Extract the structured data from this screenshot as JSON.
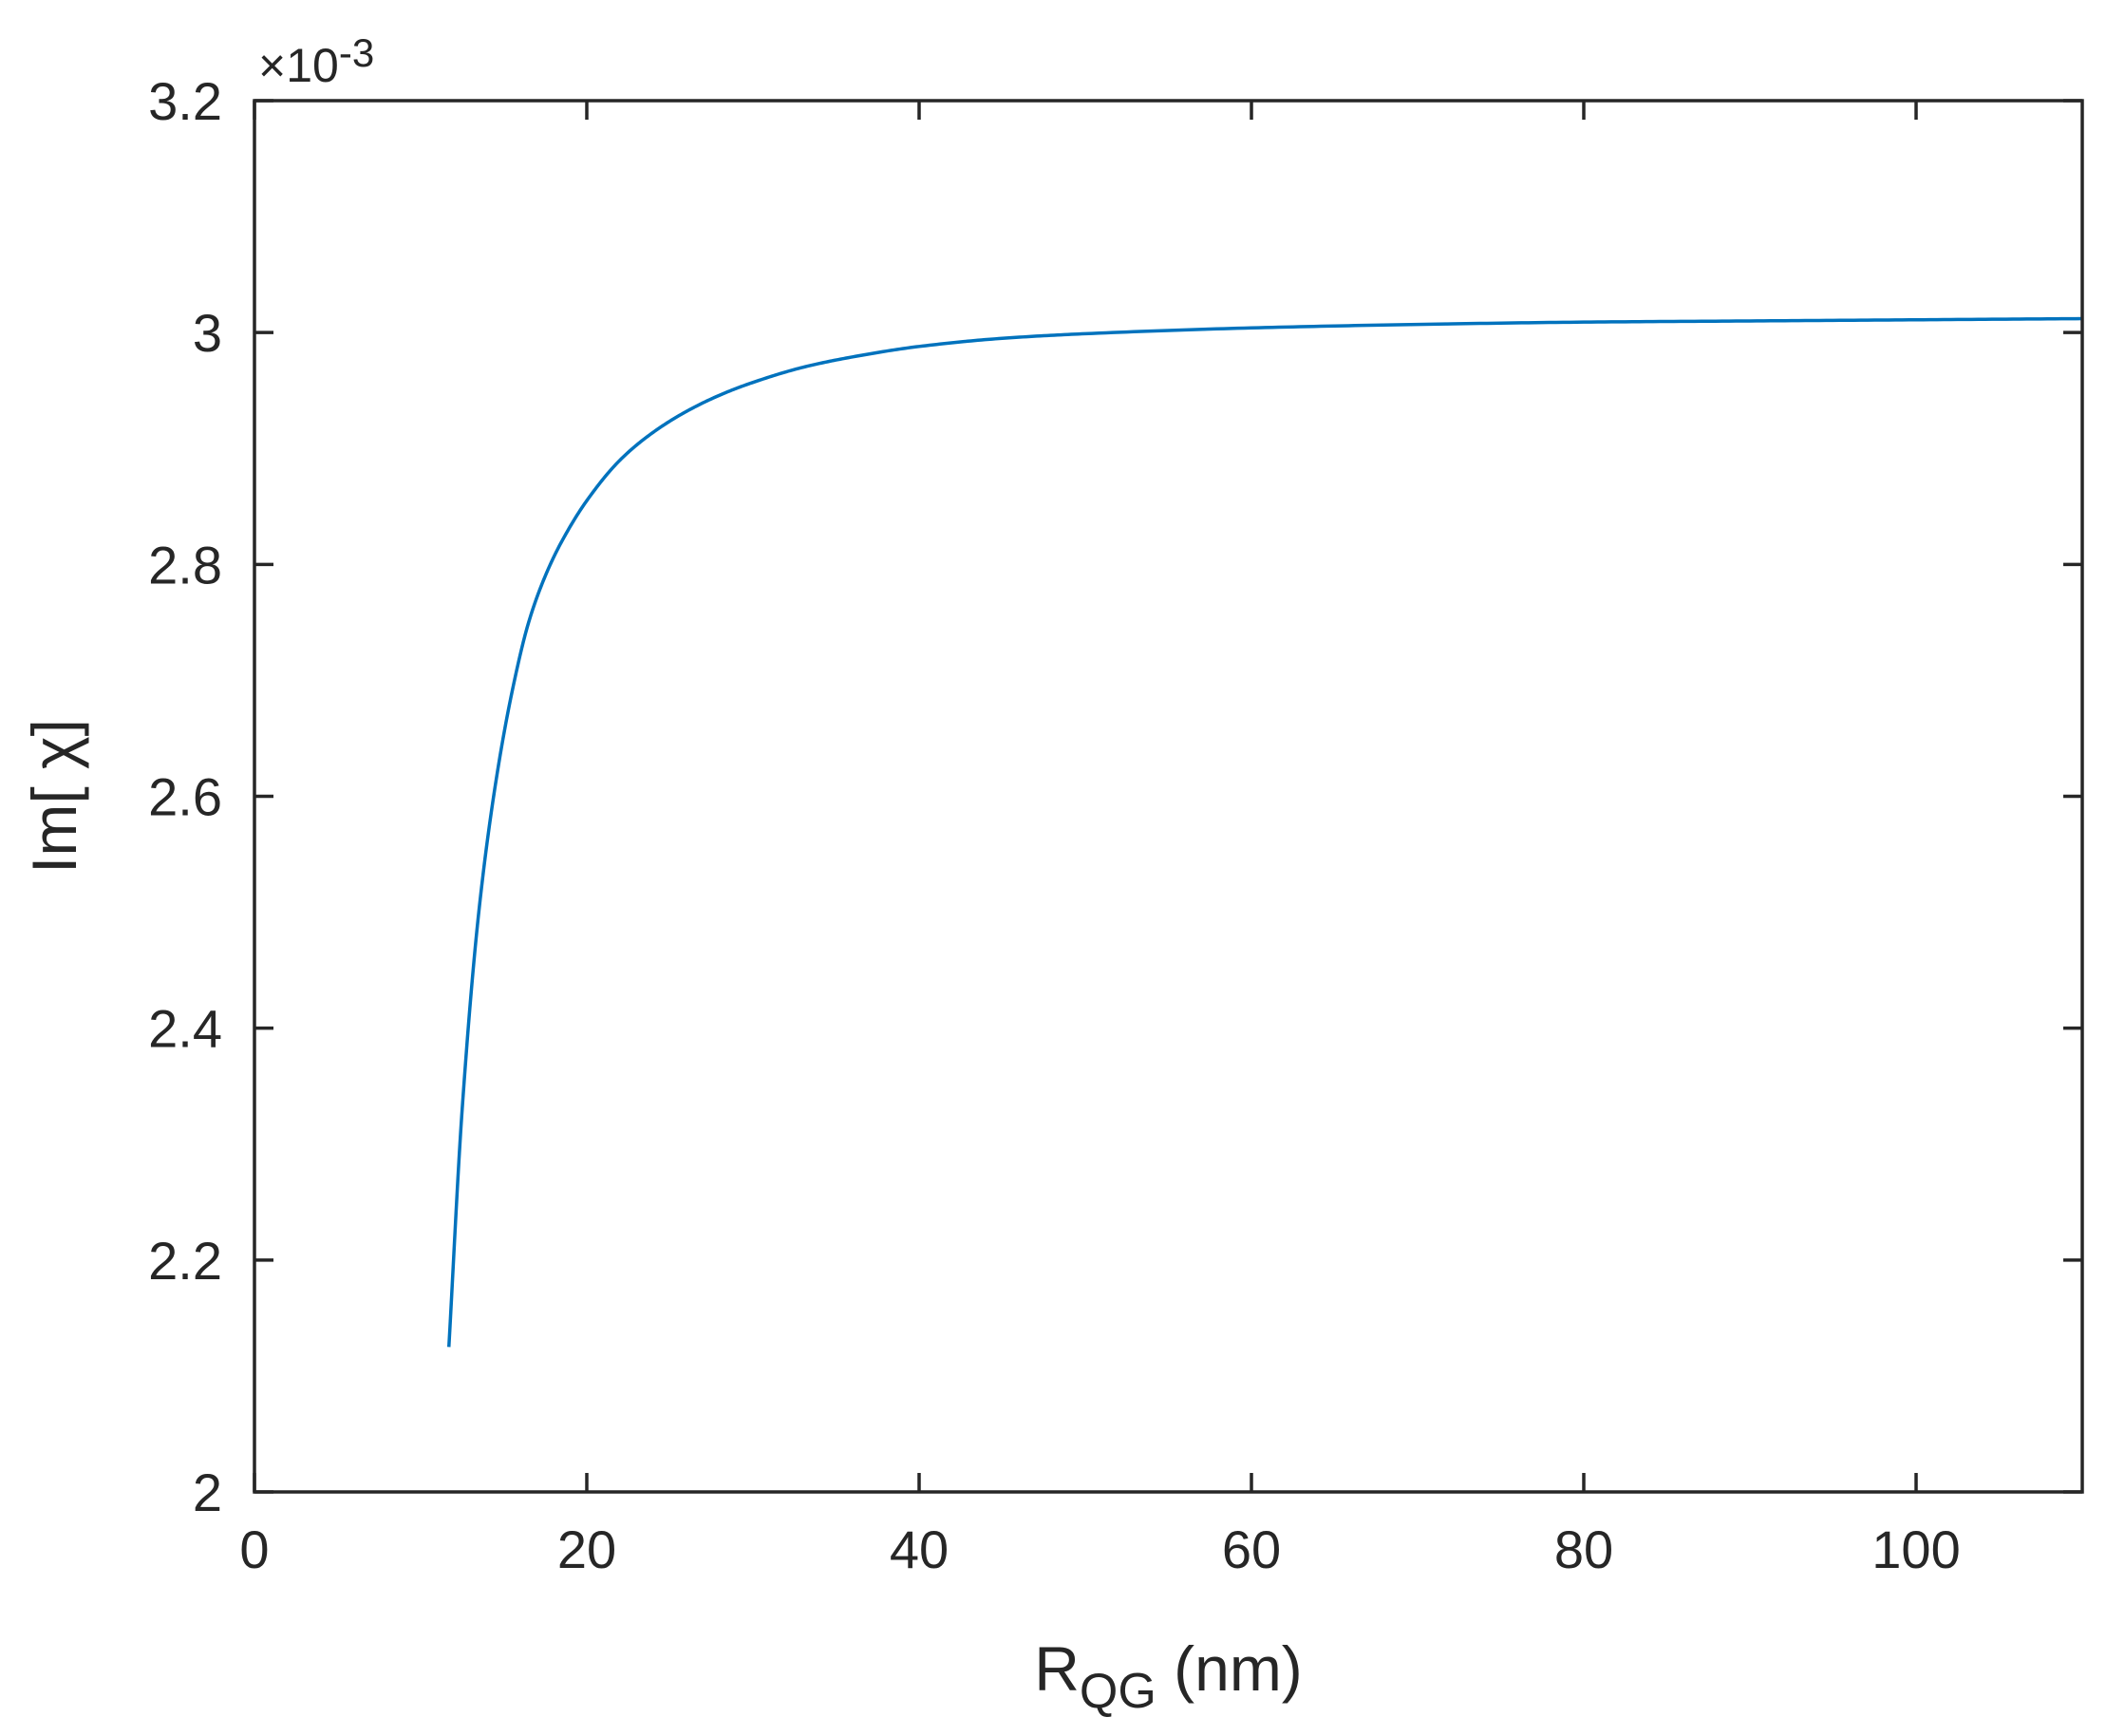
{
  "chart_data": {
    "type": "line",
    "title": "",
    "xlabel": "R",
    "xlabel_subscript": "QG",
    "xlabel_unit": " (nm)",
    "ylabel": "Im[ χ]",
    "y_multiplier_base": "×10",
    "y_multiplier_exponent": "-3",
    "xlim": [
      0,
      110
    ],
    "ylim": [
      2.0,
      3.2
    ],
    "xticks": [
      0,
      20,
      40,
      60,
      80,
      100
    ],
    "xtick_labels": [
      "0",
      "20",
      "40",
      "60",
      "80",
      "100"
    ],
    "yticks": [
      2.0,
      2.2,
      2.4,
      2.6,
      2.8,
      3.0,
      3.2
    ],
    "ytick_labels": [
      "2",
      "2.2",
      "2.4",
      "2.6",
      "2.8",
      "3",
      "3.2"
    ],
    "grid": false,
    "legend": "none",
    "line_color": "#0072BD",
    "series": [
      {
        "x": [
          11.7,
          12.5,
          13.5,
          14.5,
          15.5,
          16.5,
          17.5,
          18.5,
          20,
          22,
          24,
          26,
          28,
          30,
          33,
          36,
          40,
          45,
          50,
          60,
          70,
          80,
          90,
          100,
          110
        ],
        "values": [
          2.125,
          2.33,
          2.5,
          2.61,
          2.69,
          2.75,
          2.79,
          2.82,
          2.855,
          2.89,
          2.914,
          2.932,
          2.946,
          2.957,
          2.97,
          2.979,
          2.988,
          2.995,
          2.999,
          3.004,
          3.007,
          3.009,
          3.01,
          3.011,
          3.012
        ]
      }
    ]
  }
}
